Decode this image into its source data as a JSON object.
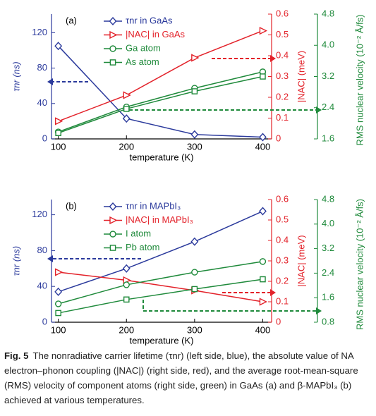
{
  "chart_data": [
    {
      "type": "line",
      "panel": "(a)",
      "xlabel": "temperature (K)",
      "ylabel": "τnr (ns)",
      "y2label": "|NAC| (meV)",
      "y3label": "RMS nuclear velocity (10⁻² Å/fs)",
      "x": [
        100,
        200,
        300,
        400
      ],
      "xlim": [
        90,
        413
      ],
      "xticks": [
        100,
        200,
        300,
        400
      ],
      "ylim": [
        0,
        141
      ],
      "yticks": [
        0,
        40,
        80,
        120
      ],
      "ycolor": "#2b3a9c",
      "y2lim": [
        0,
        0.6
      ],
      "y2ticks": [
        0,
        0.1,
        0.2,
        0.3,
        0.4,
        0.5,
        0.6
      ],
      "y2color": "#e3222a",
      "y3lim": [
        1.6,
        4.8
      ],
      "y3ticks": [
        1.6,
        2.4,
        3.2,
        {
          "value": 4,
          "label": "4.0"
        },
        4.8
      ],
      "y3color": "#1f8a3b",
      "series": [
        {
          "name": "τnr in GaAs",
          "color": "#2b3a9c",
          "marker": "diamond",
          "axis": "y",
          "values": [
            105,
            23,
            5,
            2
          ]
        },
        {
          "name": "|NAC| in GaAs",
          "color": "#e3222a",
          "marker": "triangle",
          "axis": "y2",
          "values": [
            0.085,
            0.21,
            0.39,
            0.52
          ]
        },
        {
          "name": "Ga atom",
          "color": "#1f8a3b",
          "marker": "circle",
          "axis": "y3",
          "values": [
            1.78,
            2.42,
            2.9,
            3.32
          ]
        },
        {
          "name": "As atom",
          "color": "#1f8a3b",
          "marker": "square",
          "axis": "y3",
          "values": [
            1.75,
            2.37,
            2.82,
            3.2
          ]
        }
      ]
    },
    {
      "type": "line",
      "panel": "(b)",
      "xlabel": "temperature (K)",
      "ylabel": "τnr (ns)",
      "y2label": "|NAC| (meV)",
      "y3label": "RMS nuclear velocity (10⁻² Å/fs)",
      "x": [
        100,
        200,
        300,
        400
      ],
      "xlim": [
        90,
        413
      ],
      "xticks": [
        100,
        200,
        300,
        400
      ],
      "ylim": [
        0,
        137
      ],
      "yticks": [
        0,
        40,
        80,
        120
      ],
      "ycolor": "#2b3a9c",
      "y2lim": [
        0,
        0.6
      ],
      "y2ticks": [
        0,
        0.1,
        0.2,
        0.3,
        0.4,
        0.5,
        0.6
      ],
      "y2color": "#e3222a",
      "y3lim": [
        0.8,
        4.8
      ],
      "y3ticks": [
        0.8,
        1.6,
        2.4,
        3.2,
        {
          "value": 4,
          "label": "4.0"
        },
        4.8
      ],
      "y3color": "#1f8a3b",
      "series": [
        {
          "name": "τnr in MAPbI₃",
          "color": "#2b3a9c",
          "marker": "diamond",
          "axis": "y",
          "values": [
            34,
            60,
            90,
            124
          ]
        },
        {
          "name": "|NAC| in MAPbI₃",
          "color": "#e3222a",
          "marker": "triangle",
          "axis": "y2",
          "values": [
            0.245,
            0.205,
            0.155,
            0.1
          ]
        },
        {
          "name": "I atom",
          "color": "#1f8a3b",
          "marker": "circle",
          "axis": "y3",
          "values": [
            1.4,
            2.02,
            2.43,
            2.78
          ]
        },
        {
          "name": "Pb atom",
          "color": "#1f8a3b",
          "marker": "square",
          "axis": "y3",
          "values": [
            1.1,
            1.54,
            1.88,
            2.2
          ]
        }
      ]
    }
  ],
  "caption": {
    "label": "Fig. 5",
    "text": "The nonradiative carrier lifetime (τnr) (left side, blue), the absolute value of NA electron–phonon coupling (|NAC|) (right side, red), and the average root-mean-square (RMS) velocity of component atoms (right side, green) in GaAs (a) and β-MAPbI₃ (b) achieved at various temperatures."
  }
}
